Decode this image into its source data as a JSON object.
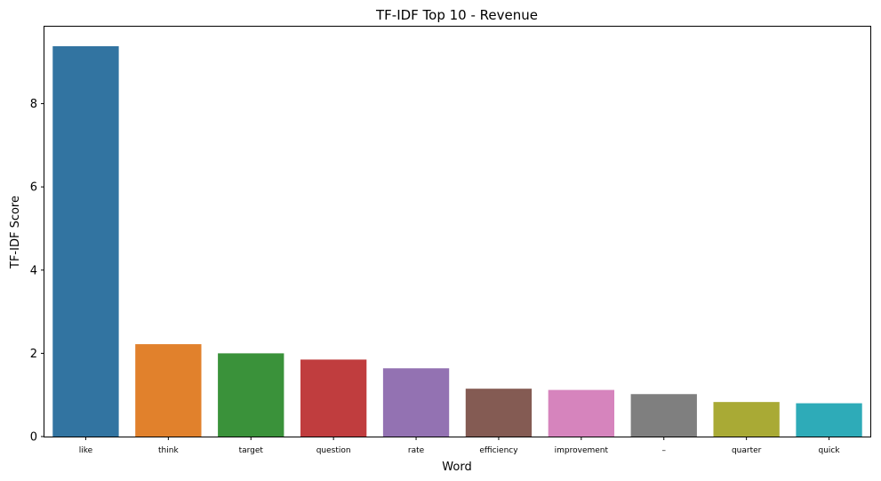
{
  "chart_data": {
    "type": "bar",
    "title": "TF-IDF Top 10 - Revenue",
    "xlabel": "Word",
    "ylabel": "TF-IDF Score",
    "categories": [
      "like",
      "think",
      "target",
      "question",
      "rate",
      "efficiency",
      "improvement",
      "–",
      "quarter",
      "quick"
    ],
    "values": [
      9.38,
      2.22,
      2.0,
      1.85,
      1.64,
      1.15,
      1.12,
      1.02,
      0.83,
      0.8
    ],
    "colors": [
      "#3274a1",
      "#e1812c",
      "#3a923a",
      "#c03d3e",
      "#9372b2",
      "#845b53",
      "#d684bd",
      "#7f7f7f",
      "#a9aa35",
      "#2eabb8"
    ],
    "ylim": [
      0,
      9.85
    ],
    "yticks": [
      0,
      2,
      4,
      6,
      8
    ],
    "grid": false,
    "legend": "none"
  }
}
